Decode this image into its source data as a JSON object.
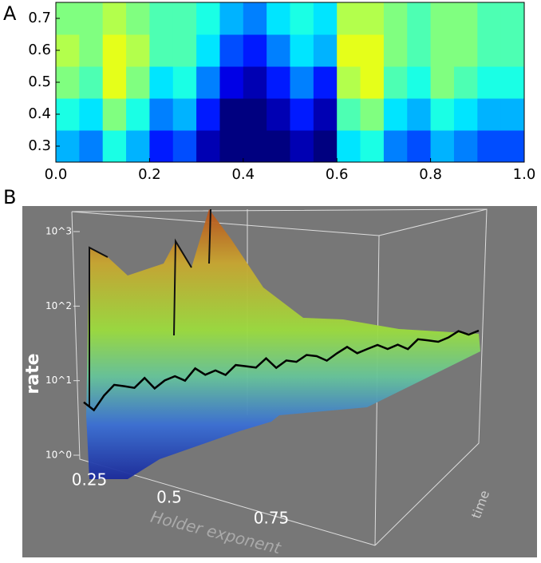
{
  "panels": [
    "A",
    "B"
  ],
  "chart_data": [
    {
      "type": "heatmap",
      "colormap": "jet",
      "xlim": [
        0,
        1
      ],
      "ylim": [
        0.25,
        0.75
      ],
      "xticks": [
        {
          "value": 0,
          "label": "0.0"
        },
        0.2,
        0.4,
        0.6,
        0.8,
        {
          "value": 1,
          "label": "1.0"
        }
      ],
      "yticks": [
        0.3,
        0.4,
        0.5,
        0.6,
        0.7
      ],
      "z": [
        [
          0.3,
          0.25,
          0.4,
          0.3,
          0.15,
          0.2,
          0.05,
          0.0,
          0.0,
          0.0,
          0.05,
          0.0,
          0.35,
          0.4,
          0.25,
          0.2,
          0.3,
          0.25,
          0.2,
          0.2
        ],
        [
          0.4,
          0.35,
          0.5,
          0.4,
          0.25,
          0.3,
          0.15,
          0.0,
          0.0,
          0.05,
          0.15,
          0.05,
          0.45,
          0.5,
          0.35,
          0.3,
          0.4,
          0.35,
          0.3,
          0.3
        ],
        [
          0.5,
          0.45,
          0.6,
          0.5,
          0.35,
          0.4,
          0.25,
          0.1,
          0.05,
          0.15,
          0.25,
          0.15,
          0.55,
          0.6,
          0.45,
          0.4,
          0.5,
          0.45,
          0.4,
          0.4
        ],
        [
          0.55,
          0.5,
          0.6,
          0.55,
          0.45,
          0.45,
          0.35,
          0.2,
          0.15,
          0.25,
          0.35,
          0.3,
          0.6,
          0.6,
          0.5,
          0.45,
          0.5,
          0.5,
          0.45,
          0.45
        ],
        [
          0.5,
          0.5,
          0.55,
          0.5,
          0.45,
          0.45,
          0.4,
          0.3,
          0.25,
          0.35,
          0.4,
          0.35,
          0.55,
          0.55,
          0.5,
          0.45,
          0.5,
          0.5,
          0.45,
          0.45
        ]
      ]
    },
    {
      "type": "surface3d",
      "zlog": true,
      "zlim": [
        1,
        1000
      ],
      "zlabel": "rate",
      "xlabel": "Holder exponent",
      "ylabel": "time",
      "xticks": [
        0.25,
        0.5,
        0.75
      ],
      "zticks": [
        {
          "value": 1,
          "label": "10^0"
        },
        {
          "value": 10,
          "label": "10^1"
        },
        {
          "value": 100,
          "label": "10^2"
        },
        {
          "value": 1000,
          "label": "10^3"
        }
      ],
      "profile": [
        8,
        6,
        9,
        12,
        11,
        10,
        13,
        9,
        11,
        12,
        10,
        14,
        11,
        12,
        10,
        13,
        12,
        11,
        14,
        10,
        12,
        11,
        13,
        12,
        10,
        12,
        14,
        11,
        12,
        13,
        11,
        12,
        10,
        13,
        12,
        11,
        12,
        14,
        12,
        13
      ]
    }
  ]
}
